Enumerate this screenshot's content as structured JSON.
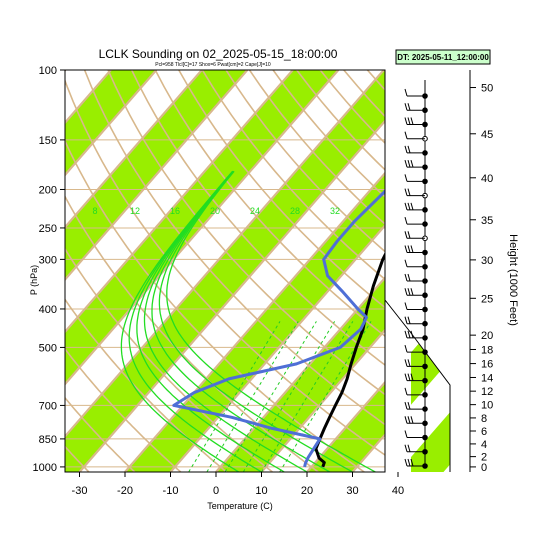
{
  "title": "LCLK Sounding on 02_2025-05-15_18:00:00",
  "subtitle": "Pcl=958 Tlcl[C]=17 Shox=6 Pwat[cm]=2 Cape[J]=10",
  "datetime_box": "DT: 2025-05-11_12:00:00",
  "chart_data": {
    "type": "line",
    "title": "LCLK Sounding on 02_2025-05-15_18:00:00",
    "xlabel": "Temperature (C)",
    "ylabel": "P (hPa)",
    "y2label": "Height (1000 Feet)",
    "x_ticks": [
      "-30",
      "-20",
      "-10",
      "0",
      "10",
      "20",
      "30",
      "40"
    ],
    "p_ticks": [
      "100",
      "150",
      "200",
      "250",
      "300",
      "400",
      "500",
      "700",
      "850",
      "1000"
    ],
    "height_ticks": [
      "0",
      "2",
      "4",
      "6",
      "8",
      "10",
      "12",
      "14",
      "16",
      "18",
      "20",
      "25",
      "30",
      "35",
      "40",
      "45",
      "50"
    ],
    "y_scale": "log",
    "xlim": [
      -33,
      43
    ],
    "ylim_hpa": [
      1030,
      100
    ],
    "mixing_ratio_labels": [
      "8",
      "12",
      "16",
      "20",
      "24",
      "28",
      "32"
    ],
    "series": [
      {
        "color": "#000000",
        "x": [
          22.5,
          22,
          20,
          17.5,
          16.5,
          15.5,
          14.5,
          13.5,
          12.5,
          11,
          9,
          7,
          5,
          2,
          -1,
          -4,
          -6.5,
          -7.5,
          -7.5,
          -6,
          -3,
          0.5,
          4.5,
          8,
          10.5,
          12.5
        ],
        "y": [
          1000,
          975,
          950,
          900,
          850,
          800,
          750,
          700,
          650,
          600,
          550,
          500,
          450,
          400,
          350,
          300,
          250,
          225,
          200,
          175,
          150,
          135,
          125,
          115,
          107,
          100
        ]
      },
      {
        "color": "#4f6fd6",
        "x": [
          18.5,
          18,
          17.5,
          16.5,
          4,
          -7,
          -22,
          -20,
          -15,
          -3,
          3.5,
          4.5,
          3.5,
          0,
          -7,
          -13,
          -17,
          -17.5,
          -17.5,
          -16.5,
          -15.5,
          -14.5,
          -13,
          -11,
          -9,
          -6,
          -3
        ],
        "y": [
          1000,
          980,
          950,
          850,
          800,
          750,
          700,
          650,
          600,
          550,
          500,
          450,
          420,
          400,
          360,
          330,
          300,
          270,
          240,
          200,
          170,
          150,
          140,
          130,
          120,
          110,
          100
        ]
      }
    ],
    "wind_levels": 27
  }
}
